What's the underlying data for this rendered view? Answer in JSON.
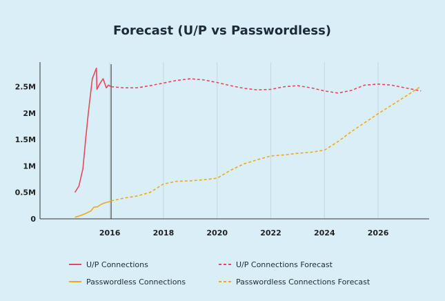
{
  "chart_data": {
    "type": "line",
    "title": "Forecast (U/P vs Passwordless)",
    "xlabel": "",
    "ylabel": "",
    "xlim": [
      2013.4,
      2027.9
    ],
    "ylim": [
      0,
      2900000
    ],
    "grid": "vertical",
    "x_ticks": [
      2016,
      2018,
      2020,
      2022,
      2024,
      2026
    ],
    "x_tick_labels": [
      "2016",
      "2018",
      "2020",
      "2022",
      "2024",
      "2026"
    ],
    "y_ticks": [
      0,
      500000,
      1000000,
      1500000,
      2000000,
      2500000
    ],
    "y_tick_labels": [
      "0",
      "0.5M",
      "1M",
      "1.5M",
      "2M",
      "2.5M"
    ],
    "forecast_start": 2016.05,
    "legend_position": "bottom",
    "series": [
      {
        "name": "U/P Connections",
        "style": "solid",
        "color": "#e8465a",
        "x": [
          2014.7,
          2014.85,
          2015.0,
          2015.1,
          2015.2,
          2015.35,
          2015.5,
          2015.52,
          2015.62,
          2015.75,
          2015.87,
          2015.95,
          2016.05
        ],
        "y": [
          500000,
          620000,
          950000,
          1500000,
          2000000,
          2650000,
          2850000,
          2450000,
          2550000,
          2650000,
          2480000,
          2530000,
          2500000
        ]
      },
      {
        "name": "U/P Connections Forecast",
        "style": "dashed",
        "color": "#e8465a",
        "x": [
          2016.05,
          2016.5,
          2017,
          2017.5,
          2018,
          2018.5,
          2019,
          2019.5,
          2020,
          2020.5,
          2021,
          2021.5,
          2022,
          2022.5,
          2023,
          2023.5,
          2024,
          2024.5,
          2025,
          2025.5,
          2026,
          2026.5,
          2027,
          2027.6
        ],
        "y": [
          2500000,
          2480000,
          2480000,
          2520000,
          2570000,
          2620000,
          2650000,
          2630000,
          2580000,
          2520000,
          2470000,
          2440000,
          2450000,
          2500000,
          2520000,
          2480000,
          2420000,
          2380000,
          2430000,
          2530000,
          2550000,
          2530000,
          2480000,
          2420000
        ]
      },
      {
        "name": "Passwordless Connections",
        "style": "solid",
        "color": "#f0a71c",
        "x": [
          2014.7,
          2014.9,
          2015.1,
          2015.3,
          2015.4,
          2015.55,
          2015.6,
          2015.7,
          2015.8,
          2015.95,
          2016.05
        ],
        "y": [
          30000,
          60000,
          100000,
          150000,
          220000,
          230000,
          250000,
          280000,
          300000,
          320000,
          340000
        ]
      },
      {
        "name": "Passwordless Connections Forecast",
        "style": "dashed",
        "color": "#f0a71c",
        "x": [
          2016.05,
          2016.5,
          2017,
          2017.5,
          2018,
          2018.5,
          2019,
          2019.5,
          2020,
          2020.5,
          2021,
          2021.5,
          2022,
          2022.5,
          2023,
          2023.5,
          2024,
          2024.5,
          2025,
          2025.5,
          2026,
          2026.5,
          2027,
          2027.6
        ],
        "y": [
          340000,
          390000,
          430000,
          500000,
          660000,
          710000,
          720000,
          740000,
          770000,
          920000,
          1040000,
          1120000,
          1190000,
          1210000,
          1240000,
          1260000,
          1300000,
          1460000,
          1650000,
          1820000,
          1990000,
          2150000,
          2310000,
          2510000
        ]
      }
    ]
  }
}
